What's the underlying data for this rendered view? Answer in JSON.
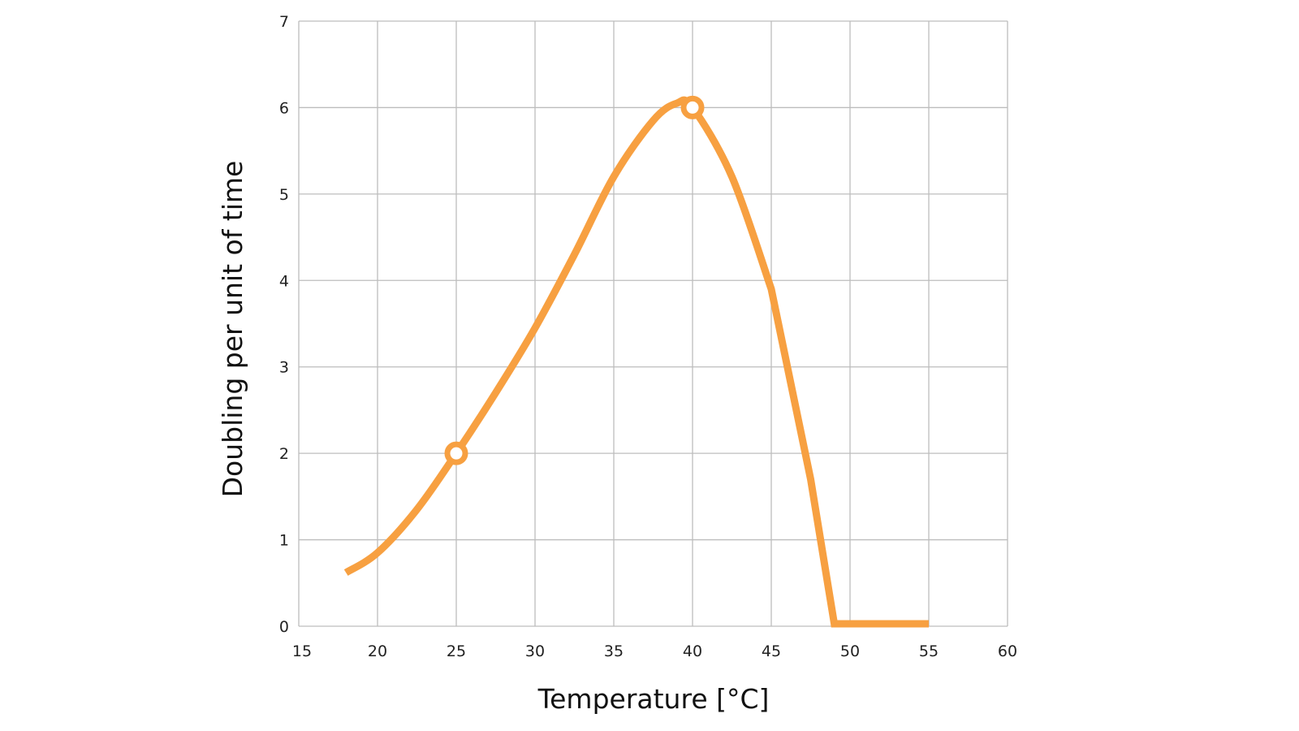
{
  "chart_data": {
    "type": "line",
    "title": "",
    "xlabel": "Temperature [°C]",
    "ylabel": "Doubling per unit of time",
    "xlim": [
      15,
      60
    ],
    "ylim": [
      0,
      7
    ],
    "xticks": [
      15,
      20,
      25,
      30,
      35,
      40,
      45,
      50,
      55,
      60
    ],
    "yticks": [
      0,
      1,
      2,
      3,
      4,
      5,
      6,
      7
    ],
    "grid": true,
    "series": [
      {
        "color": "#f7a041",
        "x": [
          18,
          20,
          22.5,
          25,
          27.5,
          30,
          32.5,
          35,
          37.5,
          39,
          40,
          42.5,
          45,
          47.5,
          49,
          55
        ],
        "y": [
          0.62,
          0.85,
          1.35,
          2,
          2.7,
          3.45,
          4.3,
          5.2,
          5.85,
          6.05,
          6,
          5.2,
          3.9,
          1.7,
          0,
          0
        ]
      }
    ],
    "markers": [
      {
        "x": 25,
        "y": 2
      },
      {
        "x": 40,
        "y": 6
      }
    ],
    "colors": {
      "grid": "#bdbdbd",
      "line": "#f7a041"
    }
  }
}
